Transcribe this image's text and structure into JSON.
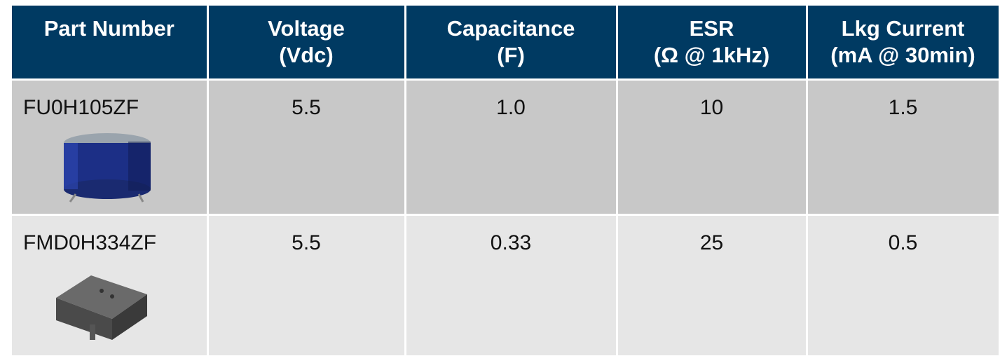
{
  "table": {
    "header": [
      [
        "Part Number"
      ],
      [
        "Voltage",
        "(Vdc)"
      ],
      [
        "Capacitance",
        "(F)"
      ],
      [
        "ESR",
        "(Ω @ 1kHz)"
      ],
      [
        "Lkg Current",
        "(mA @ 30min)"
      ]
    ],
    "rows": [
      [
        "FU0H105ZF",
        "5.5",
        "1.0",
        "10",
        "1.5"
      ],
      [
        "FMD0H334ZF",
        "5.5",
        "0.33",
        "25",
        "0.5"
      ]
    ]
  }
}
